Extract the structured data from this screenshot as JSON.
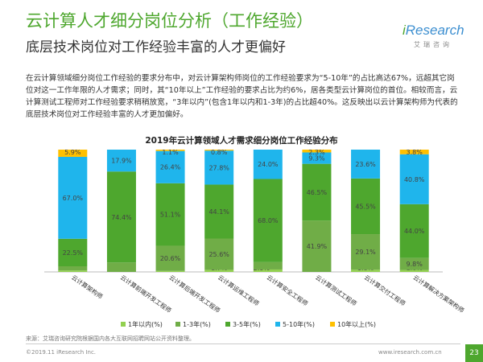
{
  "header": {
    "title": "云计算人才细分岗位分析（工作经验）",
    "subtitle": "底层技术岗位对工作经验丰富的人才更偏好"
  },
  "logo": {
    "main_i": "i",
    "main_rest": "Research",
    "sub": "艾瑞咨询"
  },
  "body_text": "在云计算领域细分岗位工作经验的要求分布中，对云计算架构师岗位的工作经验要求为“5-10年”的占比高达67%，远超其它岗位对这一工作年限的人才需求；同时，其“10年以上”工作经验的要求占比为约6%，居各类型云计算岗位的首位。相较而言，云计算测试工程师对工作经验要求稍稍放宽，“3年以内”(包含1年以内和1-3年)的占比超40%。这反映出以云计算架构师为代表的底层技术岗位对工作经验丰富的人才更加偏好。",
  "colors": {
    "accent_green": "#4ea72e",
    "logo_blue": "#3b8ed0",
    "series": [
      "#92d050",
      "#70ad47",
      "#4ea72e",
      "#1fb5ec",
      "#ffc000"
    ]
  },
  "chart_data": {
    "type": "bar",
    "stacked": true,
    "title": "2019年云计算领域人才需求细分岗位工作经验分布",
    "categories": [
      "云计算架构师",
      "云计算前端开发工程师",
      "云计算后端开发工程师",
      "云计算运维工程师",
      "云计算安全工程师",
      "云计算测试工程师",
      "云计算交付工程师",
      "云计算解决方案架构师"
    ],
    "series": [
      {
        "name": "1年以内(%)",
        "values": [
          1.2,
          0.0,
          0.8,
          1.7,
          2.0,
          0.0,
          1.8,
          1.6
        ],
        "labels": [
          "1.2%",
          "",
          "0.8%",
          "1.7%",
          "2.0%",
          "",
          "1.8%",
          "1.6%"
        ]
      },
      {
        "name": "1-3年(%)",
        "values": [
          3.4,
          7.7,
          20.6,
          25.6,
          6.0,
          41.9,
          29.1,
          9.8
        ],
        "labels": [
          "3.4%",
          "7.7%",
          "20.6%",
          "25.6%",
          "6.0%",
          "41.9%",
          "29.1%",
          "9.8%"
        ]
      },
      {
        "name": "3-5年(%)",
        "values": [
          22.5,
          74.4,
          51.1,
          44.1,
          68.0,
          46.5,
          45.5,
          44.0
        ],
        "labels": [
          "22.5%",
          "74.4%",
          "51.1%",
          "44.1%",
          "68.0%",
          "46.5%",
          "45.5%",
          "44.0%"
        ]
      },
      {
        "name": "5-10年(%)",
        "values": [
          67.0,
          17.9,
          26.4,
          27.8,
          24.0,
          9.3,
          23.6,
          40.8
        ],
        "labels": [
          "67.0%",
          "17.9%",
          "26.4%",
          "27.8%",
          "24.0%",
          "9.3%",
          "23.6%",
          "40.8%"
        ]
      },
      {
        "name": "10年以上(%)",
        "values": [
          5.9,
          0.0,
          1.1,
          0.8,
          0.0,
          2.3,
          0.0,
          3.8
        ],
        "labels": [
          "5.9%",
          "",
          "1.1%",
          "0.8%",
          "",
          "2.3%",
          "",
          "3.8%"
        ]
      }
    ],
    "ylim": [
      0,
      100
    ],
    "grid": false,
    "legend_position": "bottom"
  },
  "source": "来源：艾瑞咨询研究院根据国内各大互联网招聘网站公开资料整理。",
  "footer": {
    "copyright": "©2019.11 iResearch Inc.",
    "website": "www.iresearch.com.cn",
    "page": "23"
  }
}
